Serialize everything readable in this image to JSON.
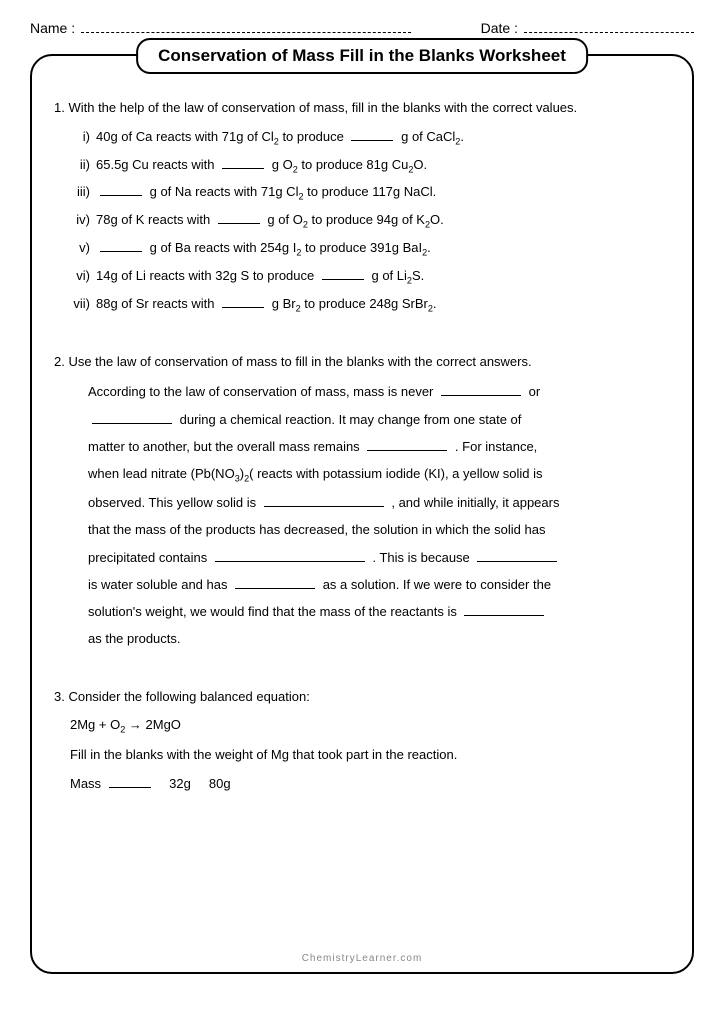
{
  "header": {
    "name_label": "Name :",
    "date_label": "Date :"
  },
  "title": "Conservation of Mass Fill in the Blanks Worksheet",
  "q1": {
    "prompt": "1. With the help of the law of conservation of mass, fill in the blanks with the correct values.",
    "items": [
      {
        "num": "i)",
        "pre": "40g of Ca reacts with 71g of Cl",
        "sub1": "2",
        "mid": " to produce ",
        "post": " g of CaCl",
        "sub2": "2",
        "end": "."
      },
      {
        "num": "ii)",
        "pre": "65.5g Cu reacts with ",
        "mid": " g O",
        "sub1": "2",
        "post": " to produce 81g Cu",
        "sub2": "2",
        "end": "O."
      },
      {
        "num": "iii)",
        "pre": "",
        "mid": " g  of Na reacts with 71g Cl",
        "sub1": "2",
        "post": " to produce 117g NaCl.",
        "sub2": "",
        "end": ""
      },
      {
        "num": "iv)",
        "pre": "78g of K reacts with ",
        "mid": " g  of O",
        "sub1": "2",
        "post": " to produce 94g of K",
        "sub2": "2",
        "end": "O."
      },
      {
        "num": "v)",
        "pre": "",
        "mid": " g of Ba reacts with 254g I",
        "sub1": "2",
        "post": " to produce 391g BaI",
        "sub2": "2",
        "end": "."
      },
      {
        "num": "vi)",
        "pre": "14g of Li reacts with 32g S to produce ",
        "mid": " g  of Li",
        "sub1": "2",
        "post": "S.",
        "sub2": "",
        "end": ""
      },
      {
        "num": "vii)",
        "pre": "88g of Sr reacts with ",
        "mid": " g  Br",
        "sub1": "2",
        "post": " to produce 248g SrBr",
        "sub2": "2",
        "end": "."
      }
    ]
  },
  "q2": {
    "prompt": "2. Use the law of conservation of mass to fill in the blanks with the correct answers.",
    "p1": "According to the law of conservation of mass, mass is never ",
    "p2": " or",
    "p3": " during a chemical reaction. It may change from one state of",
    "p4": "matter to another, but the overall mass remains ",
    "p5": " . For instance,",
    "p6a": "when lead nitrate (Pb(NO",
    "p6b": ")",
    "p6c": "( reacts with potassium iodide (KI), a yellow solid is",
    "p7": "observed. This yellow solid is ",
    "p8": " , and while initially, it appears",
    "p9": "that the mass of the products has decreased, the solution in which the solid has",
    "p10": "precipitated contains ",
    "p11": " . This is because ",
    "p12": "is water soluble and has ",
    "p13": " as a solution. If we were to consider the",
    "p14": "solution's weight, we would find that the mass of the reactants is ",
    "p15": "as the products."
  },
  "q3": {
    "prompt": "3. Consider the following balanced equation:",
    "eq_a": "2Mg  +  O",
    "eq_b": "  →  2MgO",
    "fill": "Fill in the blanks with the weight of Mg that took part in the reaction.",
    "mass_label": "Mass",
    "val1": "32g",
    "val2": "80g"
  },
  "footer": "ChemistryLearner.com"
}
